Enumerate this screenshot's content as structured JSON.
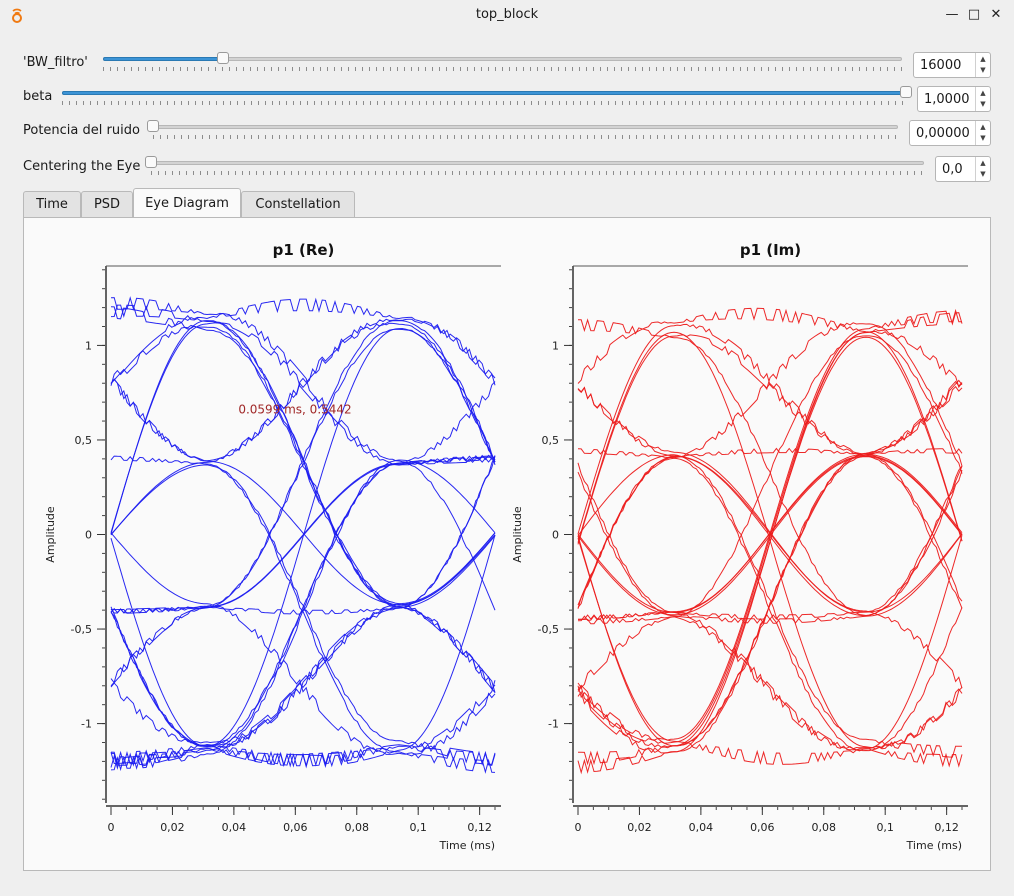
{
  "window": {
    "title": "top_block",
    "minimize": "—",
    "maximize": "□",
    "close": "✕"
  },
  "controls": [
    {
      "label": "'BW_filtro'",
      "value": "16000",
      "level": 0.15
    },
    {
      "label": "beta",
      "value": "1,0000",
      "level": 1.0
    },
    {
      "label": "Potencia del ruido",
      "value": "0,00000",
      "level": 0.0
    },
    {
      "label": "Centering the Eye",
      "value": "0,0",
      "level": 0.0
    }
  ],
  "tabs": [
    "Time",
    "PSD",
    "Eye Diagram",
    "Constellation"
  ],
  "active_tab": "Eye Diagram",
  "chart_data": [
    {
      "type": "line",
      "title": "p1 (Re)",
      "ylabel": "Amplitude",
      "xlabel": "Time (ms)",
      "xlim": [
        0,
        0.125
      ],
      "ylim": [
        -1.42,
        1.42
      ],
      "xticks": [
        "0",
        "0,02",
        "0,04",
        "0,06",
        "0,08",
        "0,1",
        "0,12"
      ],
      "xtick_values": [
        0,
        0.02,
        0.04,
        0.06,
        0.08,
        0.1,
        0.12
      ],
      "yticks": [
        "-1",
        "-0,5",
        "0",
        "0,5",
        "1"
      ],
      "ytick_values": [
        -1,
        -0.5,
        0,
        0.5,
        1
      ],
      "color": "#1c1cf0",
      "symbol_period_ms": 0.0625,
      "symbol_levels": [
        -1.12,
        -0.38,
        0.38,
        1.12
      ],
      "annotation": {
        "text": "0.0599 ms, 0.5442",
        "x": 0.0599,
        "y": 0.5442,
        "color": "#a02828"
      }
    },
    {
      "type": "line",
      "title": "p1 (Im)",
      "ylabel": "Amplitude",
      "xlabel": "Time (ms)",
      "xlim": [
        0,
        0.125
      ],
      "ylim": [
        -1.42,
        1.42
      ],
      "xticks": [
        "0",
        "0,02",
        "0,04",
        "0,06",
        "0,08",
        "0,1",
        "0,12"
      ],
      "xtick_values": [
        0,
        0.02,
        0.04,
        0.06,
        0.08,
        0.1,
        0.12
      ],
      "yticks": [
        "-1",
        "-0,5",
        "0",
        "0,5",
        "1"
      ],
      "ytick_values": [
        -1,
        -0.5,
        0,
        0.5,
        1
      ],
      "color": "#ec1c1c",
      "symbol_period_ms": 0.0625,
      "symbol_levels": [
        -1.12,
        -0.42,
        0.42,
        1.08
      ]
    }
  ]
}
